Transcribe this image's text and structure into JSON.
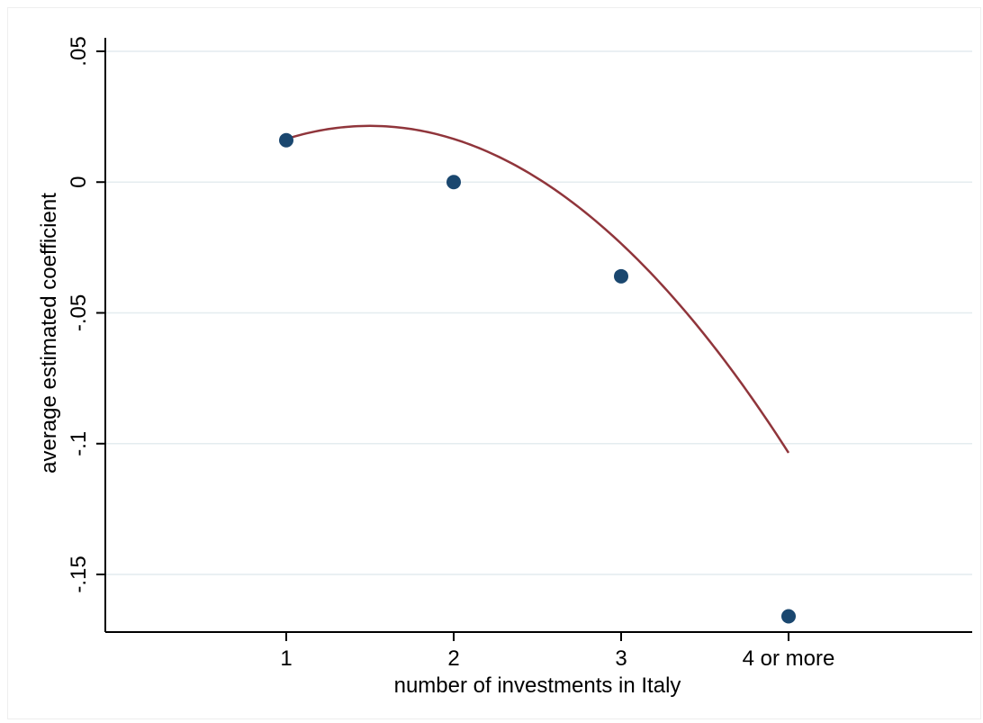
{
  "chart_data": {
    "type": "scatter",
    "title": "",
    "xlabel": "number of investments in Italy",
    "ylabel": "average estimated coefficient",
    "categories": [
      "1",
      "2",
      "3",
      "4 or more"
    ],
    "x": [
      1,
      2,
      3,
      4
    ],
    "xlim": [
      0,
      5
    ],
    "ylim": [
      -0.17,
      0.05
    ],
    "yticks": [
      0.05,
      0,
      -0.05,
      -0.1,
      -0.15
    ],
    "ytick_labels": [
      ".05",
      "0",
      "-.05",
      "-.1",
      "-.15"
    ],
    "grid": true,
    "legend": "none",
    "series": [
      {
        "type": "scatter",
        "values": [
          0.016,
          0.0,
          -0.036,
          -0.166
        ],
        "color": "#1a476f"
      },
      {
        "type": "line",
        "fit": "quadratic",
        "x_range": [
          1,
          4
        ],
        "coefficients": [
          -0.0235,
          0.06,
          -0.02
        ],
        "color": "#90353b"
      }
    ],
    "colors": {
      "grid": "#e4ecef",
      "axis": "#000000"
    }
  }
}
